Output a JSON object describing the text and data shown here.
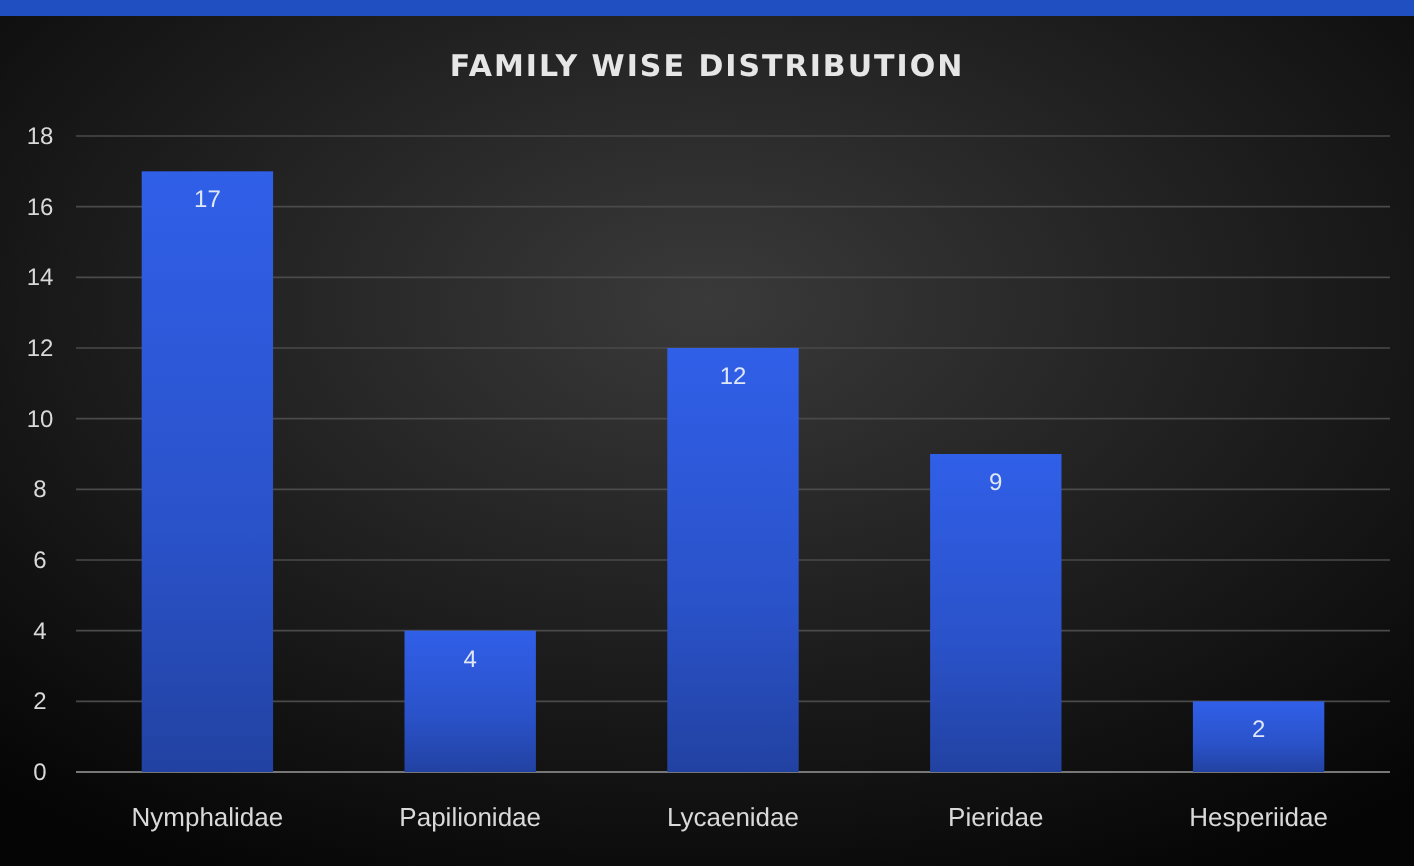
{
  "chart_data": {
    "type": "bar",
    "title": "FAMILY WISE DISTRIBUTION",
    "categories": [
      "Nymphalidae",
      "Papilionidae",
      "Lycaenidae",
      "Pieridae",
      "Hesperiidae"
    ],
    "values": [
      17,
      4,
      12,
      9,
      2
    ],
    "color": "#2a52c9",
    "ylim": [
      0,
      18
    ],
    "yticks": [
      0,
      2,
      4,
      6,
      8,
      10,
      12,
      14,
      16,
      18
    ],
    "grid": "y",
    "data_labels": true
  }
}
